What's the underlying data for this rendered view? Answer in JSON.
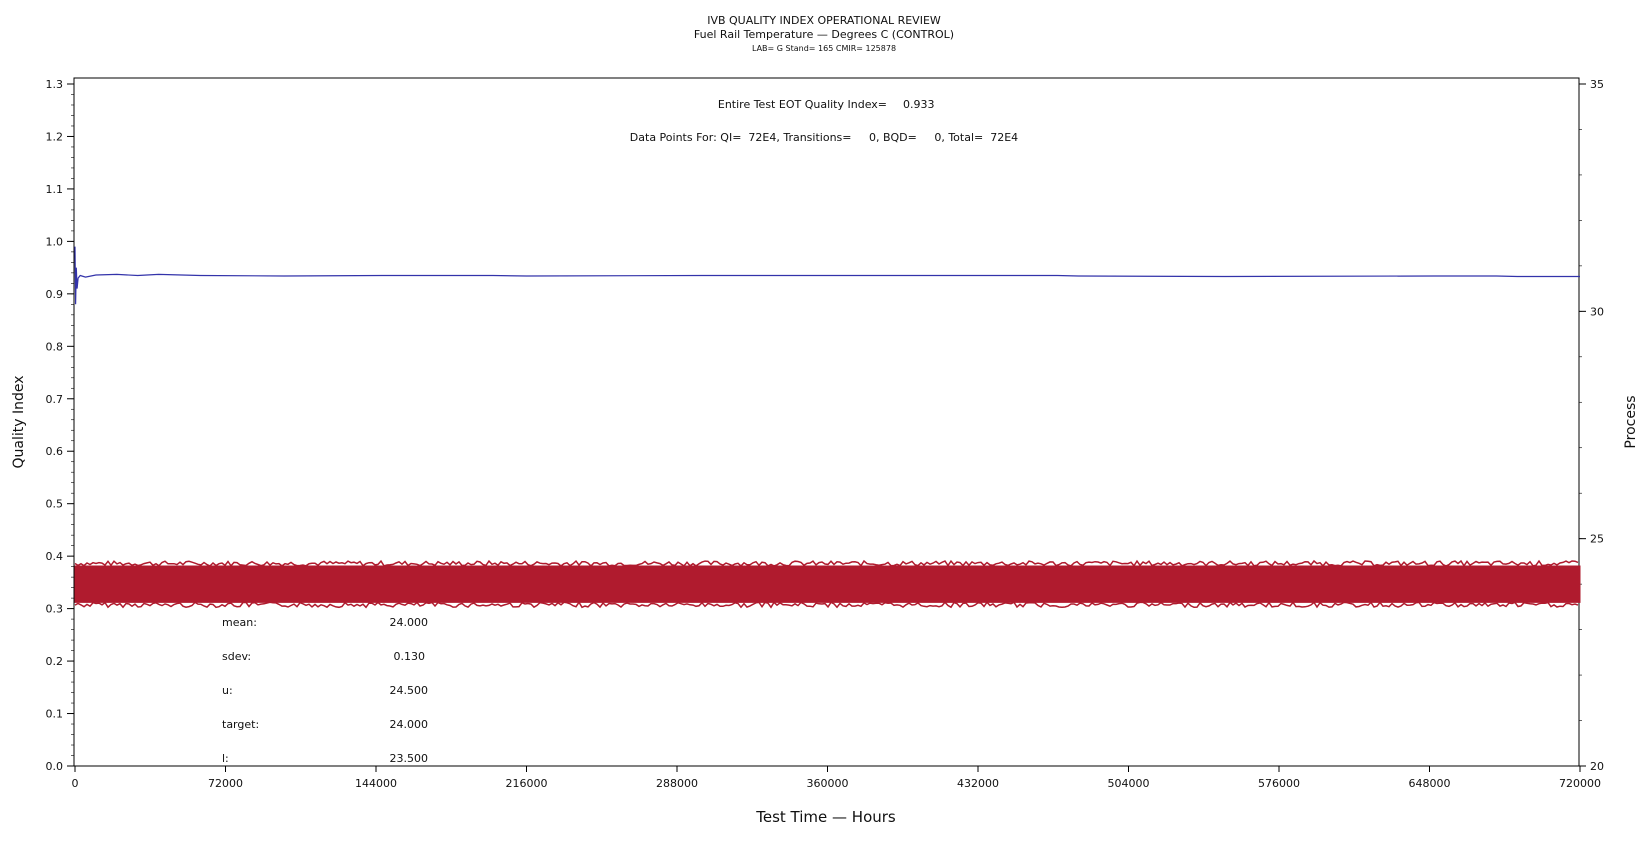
{
  "header": {
    "title": "IVB QUALITY INDEX OPERATIONAL REVIEW",
    "subtitle": "Fuel Rail Temperature — Degrees C (CONTROL)",
    "info": "LAB= G Stand= 165 CMIR= 125878"
  },
  "annotations": {
    "eot_label": "Entire Test EOT Quality Index=",
    "eot_value": "0.933",
    "data_points": "Data Points For: QI=  72E4, Transitions=     0, BQD=     0, Total=  72E4"
  },
  "stats": [
    {
      "label": "mean:",
      "value": "24.000"
    },
    {
      "label": "sdev:",
      "value": "0.130"
    },
    {
      "label": "u:",
      "value": "24.500"
    },
    {
      "label": "target:",
      "value": "24.000"
    },
    {
      "label": "l:",
      "value": "23.500"
    }
  ],
  "colors": {
    "quality_index_line": "#3333aa",
    "process_band": "#b01b2e"
  },
  "chart_data": {
    "type": "line",
    "xlabel": "Test Time — Hours",
    "ylabel": "Quality Index",
    "y2label": "Process",
    "xlim": [
      0,
      720000
    ],
    "ylim": [
      0.0,
      1.3
    ],
    "y2lim": [
      20,
      35
    ],
    "x_ticks": [
      "0",
      "72000",
      "144000",
      "216000",
      "288000",
      "360000",
      "432000",
      "504000",
      "576000",
      "648000",
      "720000"
    ],
    "y_ticks": [
      "0.0",
      "0.1",
      "0.2",
      "0.3",
      "0.4",
      "0.5",
      "0.6",
      "0.7",
      "0.8",
      "0.9",
      "1.0",
      "1.1",
      "1.2",
      "1.3"
    ],
    "y2_ticks": [
      "20",
      "25",
      "30",
      "35"
    ],
    "series": [
      {
        "axis": "left",
        "x": [
          0,
          300,
          600,
          1000,
          1500,
          2500,
          5000,
          10000,
          20000,
          30000,
          40000,
          60000,
          100000,
          150000,
          200000,
          216000,
          300000,
          400000,
          470000,
          480000,
          550000,
          650000,
          680000,
          690000,
          720000
        ],
        "y": [
          0.99,
          0.88,
          0.95,
          0.91,
          0.93,
          0.935,
          0.932,
          0.936,
          0.937,
          0.935,
          0.937,
          0.935,
          0.934,
          0.935,
          0.935,
          0.934,
          0.935,
          0.935,
          0.935,
          0.934,
          0.933,
          0.934,
          0.934,
          0.933,
          0.933
        ]
      },
      {
        "axis": "right",
        "band": true,
        "x": [
          0,
          72000,
          144000,
          216000,
          288000,
          360000,
          432000,
          504000,
          576000,
          648000,
          720000
        ],
        "y_min": [
          23.6,
          23.6,
          23.6,
          23.6,
          23.6,
          23.6,
          23.6,
          23.6,
          23.6,
          23.6,
          23.6
        ],
        "y_max": [
          24.4,
          24.4,
          24.4,
          24.4,
          24.4,
          24.4,
          24.4,
          24.4,
          24.4,
          24.4,
          24.4
        ]
      }
    ]
  }
}
